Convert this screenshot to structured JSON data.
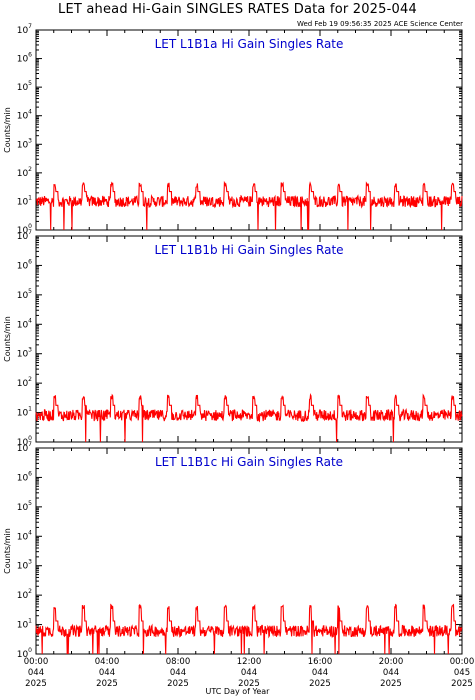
{
  "title": "LET ahead Hi-Gain SINGLES RATES Data for 2025-044",
  "timestamp": "Wed Feb 19 09:56:35 2025 ACE Science Center",
  "chart_data": [
    {
      "type": "line",
      "panel_title": "LET L1B1a Hi Gain Singles Rate",
      "ylabel": "Counts/min",
      "yscale": "log",
      "ylim": [
        1,
        10000000
      ],
      "ytick_exponents": [
        "0",
        "1",
        "2",
        "3",
        "4",
        "5",
        "6",
        "7"
      ],
      "xlim_hours": [
        0,
        24
      ],
      "series": [
        {
          "color": "#ff0000",
          "baseline": 10,
          "spike_peak": 45,
          "noise_low": 6,
          "noise_high": 16
        }
      ]
    },
    {
      "type": "line",
      "panel_title": "LET L1B1b Hi Gain Singles Rate",
      "ylabel": "Counts/min",
      "yscale": "log",
      "ylim": [
        1,
        10000000
      ],
      "ytick_exponents": [
        "0",
        "1",
        "2",
        "3",
        "4",
        "5",
        "6",
        "7"
      ],
      "xlim_hours": [
        0,
        24
      ],
      "series": [
        {
          "color": "#ff0000",
          "baseline": 8,
          "spike_peak": 40,
          "noise_low": 4,
          "noise_high": 14
        }
      ]
    },
    {
      "type": "line",
      "panel_title": "LET L1B1c Hi Gain Singles Rate",
      "ylabel": "Counts/min",
      "yscale": "log",
      "ylim": [
        1,
        10000000
      ],
      "ytick_exponents": [
        "0",
        "1",
        "2",
        "3",
        "4",
        "5",
        "6",
        "7"
      ],
      "xlim_hours": [
        0,
        24
      ],
      "series": [
        {
          "color": "#ff0000",
          "baseline": 6,
          "spike_peak": 48,
          "noise_low": 3,
          "noise_high": 11
        }
      ]
    }
  ],
  "x_axis": {
    "label": "UTC Day of Year",
    "ticks": [
      {
        "hour": 0,
        "time": "00:00",
        "doy": "044",
        "year": "2025"
      },
      {
        "hour": 4,
        "time": "04:00",
        "doy": "044",
        "year": "2025"
      },
      {
        "hour": 8,
        "time": "08:00",
        "doy": "044",
        "year": "2025"
      },
      {
        "hour": 12,
        "time": "12:00",
        "doy": "044",
        "year": "2025"
      },
      {
        "hour": 16,
        "time": "16:00",
        "doy": "044",
        "year": "2025"
      },
      {
        "hour": 20,
        "time": "20:00",
        "doy": "044",
        "year": "2025"
      },
      {
        "hour": 24,
        "time": "00:00",
        "doy": "045",
        "year": "2025"
      }
    ]
  },
  "colors": {
    "panel_title": "#0000cc",
    "trace": "#ff0000",
    "axes": "#000000"
  }
}
